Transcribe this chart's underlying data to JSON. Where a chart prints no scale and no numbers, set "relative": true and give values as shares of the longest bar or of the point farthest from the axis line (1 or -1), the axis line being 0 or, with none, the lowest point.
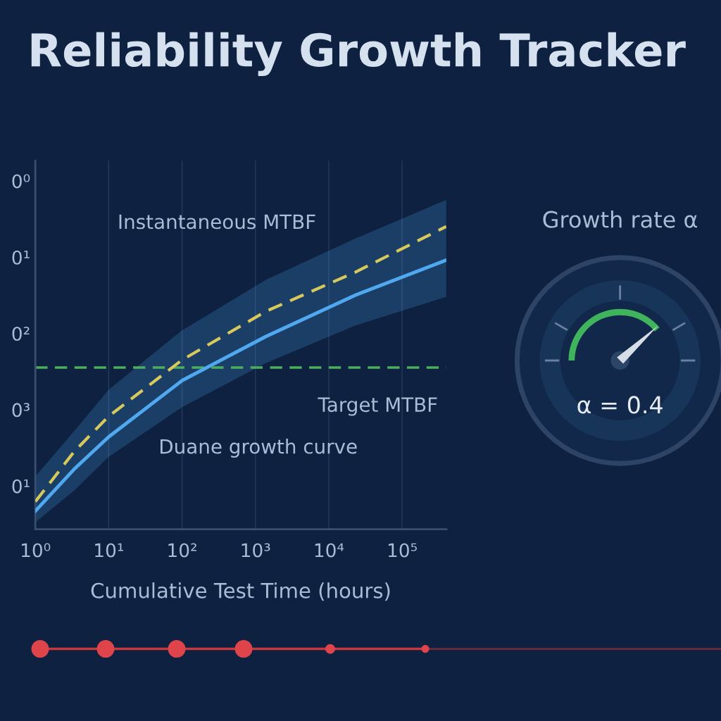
{
  "chart_data": [
    {
      "type": "line",
      "title": "Reliability Growth Tracker",
      "xlabel": "Cumulative Test Time (hours)",
      "log": "x",
      "relative": true,
      "xlim": [
        1,
        400000
      ],
      "xticks": [
        {
          "value": 1,
          "label": "10⁰"
        },
        {
          "value": 10,
          "label": "10¹"
        },
        {
          "value": 100,
          "label": "10²"
        },
        {
          "value": 1000,
          "label": "10³"
        },
        {
          "value": 10000,
          "label": "10⁴"
        },
        {
          "value": 100000,
          "label": "10⁵"
        }
      ],
      "annotations": [
        "0⁰",
        "0¹",
        "0²",
        "0³",
        "0¹"
      ],
      "grid": "x",
      "legend": false,
      "marker": "none",
      "series": [
        {
          "name": "Instantaneous MTBF",
          "color": "#d8c95c",
          "line_style": "dashed",
          "x": [
            1,
            3.4,
            10,
            100,
            1400,
            23000,
            400000
          ],
          "values": [
            0.091,
            0.257,
            0.373,
            0.559,
            0.72,
            0.849,
            1
          ]
        },
        {
          "name": "Duane growth curve",
          "color": "#4fa8f0",
          "line_style": "solid",
          "x": [
            1,
            3.4,
            10,
            100,
            1400,
            23000,
            400000
          ],
          "values": [
            0.06,
            0.199,
            0.305,
            0.491,
            0.637,
            0.773,
            0.889
          ],
          "lower": [
            0.023,
            0.128,
            0.239,
            0.403,
            0.549,
            0.673,
            0.768
          ],
          "upper": [
            0.174,
            0.325,
            0.461,
            0.657,
            0.824,
            0.96,
            1.088
          ]
        }
      ],
      "ref_lines": [
        {
          "axis": "y",
          "value": 0.534,
          "label": "Target MTBF",
          "color": "#4cae5c",
          "line_style": "dashed"
        }
      ]
    },
    {
      "type": "other",
      "title": "Growth rate α",
      "annotations": [
        "α = 0.4"
      ]
    }
  ]
}
